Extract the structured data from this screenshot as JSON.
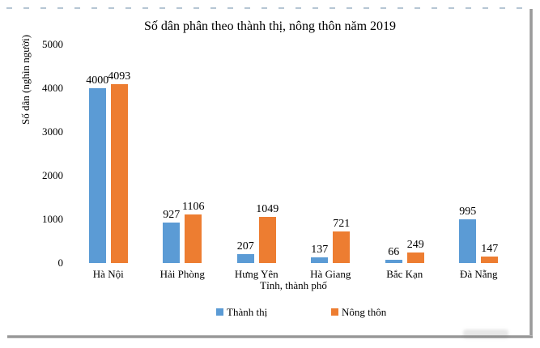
{
  "chart_data": {
    "type": "bar",
    "title": "Số dân phân theo thành thị, nông thôn năm 2019",
    "xlabel": "Tỉnh, thành phố",
    "ylabel": "Số dân (nghìn người)",
    "categories": [
      "Hà Nội",
      "Hải Phòng",
      "Hưng Yên",
      "Hà Giang",
      "Bắc Kạn",
      "Đà Nẵng"
    ],
    "series": [
      {
        "name": "Thành thị",
        "color": "#5B9BD5",
        "values": [
          4000,
          927,
          207,
          137,
          66,
          995
        ]
      },
      {
        "name": "Nông thôn",
        "color": "#ED7D31",
        "values": [
          4093,
          1106,
          1049,
          721,
          249,
          147
        ]
      }
    ],
    "ylim": [
      0,
      5000
    ],
    "yticks": [
      0,
      1000,
      2000,
      3000,
      4000,
      5000
    ],
    "grid": false,
    "data_labels": true,
    "legend_position": "bottom"
  },
  "frame": {
    "shadow_color": "#8f8f8f",
    "dash_color": "#b6c6d4",
    "background": "#ffffff"
  }
}
